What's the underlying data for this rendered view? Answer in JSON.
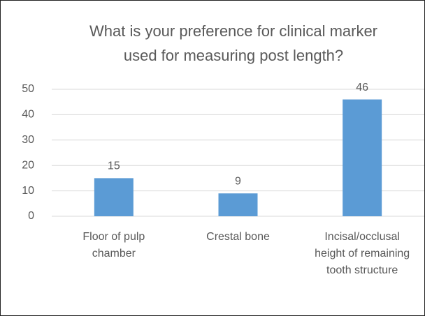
{
  "chart_data": {
    "type": "bar",
    "title": "What is your preference for clinical marker used for measuring post length?",
    "categories": [
      "Floor of pulp chamber",
      "Crestal bone",
      "Incisal/occlusal height of remaining tooth structure"
    ],
    "values": [
      15,
      9,
      46
    ],
    "color": "#5b9bd5",
    "ylim": [
      0,
      50
    ],
    "yticks": [
      0,
      10,
      20,
      30,
      40,
      50
    ],
    "grid": true
  }
}
